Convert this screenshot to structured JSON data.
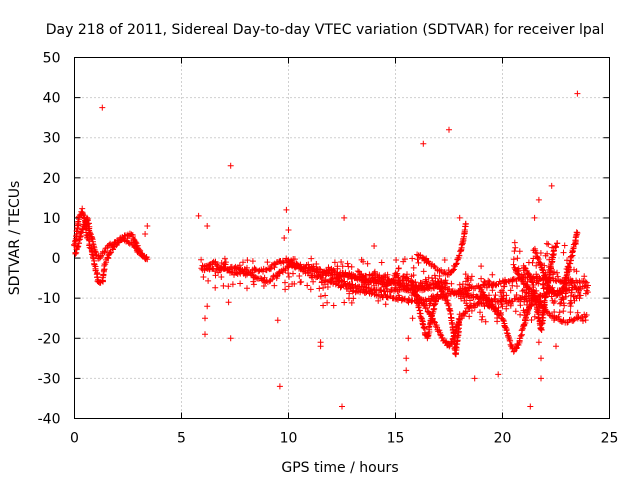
{
  "chart_data": {
    "type": "scatter",
    "title": "Day 218 of 2011, Sidereal Day-to-day VTEC variation (SDTVAR) for receiver lpal",
    "xlabel": "GPS time / hours",
    "ylabel": "SDTVAR / TECUs",
    "xlim": [
      0,
      25
    ],
    "ylim": [
      -40,
      50
    ],
    "xticks": [
      0,
      5,
      10,
      15,
      20,
      25
    ],
    "yticks": [
      -40,
      -30,
      -20,
      -10,
      0,
      10,
      20,
      30,
      40,
      50
    ],
    "grid": true,
    "marker": "+",
    "series_color": "#ff0000",
    "dense_tracks": [
      {
        "name": "arc-0",
        "points": [
          [
            0.0,
            3
          ],
          [
            0.1,
            6
          ],
          [
            0.2,
            10
          ],
          [
            0.35,
            12
          ],
          [
            0.5,
            9
          ],
          [
            0.6,
            5
          ],
          [
            0.8,
            2
          ],
          [
            1.0,
            -3
          ],
          [
            1.1,
            -6
          ],
          [
            1.3,
            -6
          ],
          [
            1.4,
            -2
          ],
          [
            1.6,
            1
          ],
          [
            1.9,
            3
          ],
          [
            2.2,
            5
          ],
          [
            2.5,
            6
          ],
          [
            2.7,
            5.5
          ],
          [
            2.9,
            3
          ],
          [
            3.1,
            1
          ],
          [
            3.3,
            0
          ],
          [
            3.4,
            0
          ]
        ]
      },
      {
        "name": "arc-0b",
        "points": [
          [
            0.05,
            1
          ],
          [
            0.2,
            4
          ],
          [
            0.4,
            8
          ],
          [
            0.6,
            10
          ],
          [
            0.7,
            7
          ],
          [
            0.9,
            3
          ],
          [
            1.1,
            0
          ],
          [
            1.3,
            1
          ],
          [
            1.6,
            3
          ],
          [
            1.9,
            4
          ],
          [
            2.3,
            4.5
          ],
          [
            2.7,
            3.5
          ],
          [
            3.0,
            1.5
          ],
          [
            3.3,
            0.5
          ]
        ]
      },
      {
        "name": "arc-1",
        "points": [
          [
            6.0,
            -2
          ],
          [
            6.5,
            -3
          ],
          [
            7.0,
            -2.5
          ],
          [
            7.5,
            -4
          ],
          [
            8.0,
            -3
          ],
          [
            8.5,
            -5
          ],
          [
            9.0,
            -6
          ],
          [
            9.5,
            -4
          ],
          [
            10.0,
            -2
          ],
          [
            10.5,
            -2
          ],
          [
            11.0,
            -3
          ],
          [
            11.5,
            -3
          ],
          [
            12.0,
            -4
          ],
          [
            12.5,
            -4
          ],
          [
            13.0,
            -5
          ],
          [
            13.5,
            -5
          ],
          [
            14.0,
            -6
          ],
          [
            14.5,
            -6
          ],
          [
            15.0,
            -6
          ],
          [
            15.5,
            -7
          ],
          [
            16.0,
            -7
          ],
          [
            16.5,
            -7
          ],
          [
            17.0,
            -6
          ],
          [
            17.5,
            -6
          ]
        ]
      },
      {
        "name": "arc-2",
        "points": [
          [
            6.0,
            -3
          ],
          [
            6.5,
            -1
          ],
          [
            7.0,
            -3
          ],
          [
            7.5,
            -2
          ],
          [
            8.0,
            -4
          ],
          [
            8.5,
            -3
          ],
          [
            9.0,
            -3
          ],
          [
            9.5,
            -1
          ],
          [
            10.0,
            -1
          ],
          [
            10.5,
            -2
          ],
          [
            11.0,
            -2
          ],
          [
            11.5,
            -4
          ],
          [
            12.0,
            -3
          ],
          [
            12.5,
            -4.5
          ],
          [
            13.0,
            -4
          ],
          [
            13.5,
            -6
          ],
          [
            14.0,
            -5
          ],
          [
            14.5,
            -7
          ],
          [
            15.0,
            -5
          ],
          [
            15.5,
            -6
          ]
        ]
      },
      {
        "name": "arc-3",
        "points": [
          [
            10.0,
            -1
          ],
          [
            11.0,
            -4
          ],
          [
            12.0,
            -6
          ],
          [
            13.0,
            -8
          ],
          [
            14.0,
            -9
          ],
          [
            15.0,
            -10
          ],
          [
            16.0,
            -11
          ],
          [
            17.0,
            -10
          ],
          [
            18.0,
            -8
          ],
          [
            19.0,
            -7
          ],
          [
            20.0,
            -6
          ],
          [
            21.0,
            -5
          ],
          [
            22.0,
            -5
          ],
          [
            23.0,
            -6
          ],
          [
            24.0,
            -6
          ]
        ]
      },
      {
        "name": "arc-4",
        "points": [
          [
            12.0,
            -5
          ],
          [
            13.0,
            -7
          ],
          [
            14.0,
            -8
          ],
          [
            15.0,
            -8
          ],
          [
            16.0,
            -8
          ],
          [
            17.0,
            -7
          ],
          [
            18.0,
            -9
          ],
          [
            19.0,
            -10
          ],
          [
            20.0,
            -11
          ],
          [
            21.0,
            -10
          ],
          [
            22.0,
            -9
          ],
          [
            23.0,
            -8
          ],
          [
            24.0,
            -7
          ]
        ]
      },
      {
        "name": "arc-5",
        "points": [
          [
            14.0,
            -4
          ],
          [
            15.0,
            -6
          ],
          [
            16.0,
            -9
          ],
          [
            16.5,
            -13
          ],
          [
            17.0,
            -18
          ],
          [
            17.3,
            -21
          ],
          [
            17.5,
            -22
          ],
          [
            17.7,
            -20
          ],
          [
            18.0,
            -15
          ],
          [
            18.5,
            -12
          ],
          [
            19.0,
            -11
          ],
          [
            19.5,
            -12
          ],
          [
            20.0,
            -14
          ]
        ]
      },
      {
        "name": "arc-6",
        "points": [
          [
            15.5,
            -5
          ],
          [
            15.8,
            -6
          ],
          [
            16.0,
            -10
          ],
          [
            16.2,
            -15
          ],
          [
            16.4,
            -19
          ],
          [
            16.5,
            -20
          ],
          [
            16.6,
            -17
          ],
          [
            16.8,
            -12
          ],
          [
            17.0,
            -9
          ]
        ]
      },
      {
        "name": "arc-7",
        "points": [
          [
            16.0,
            1
          ],
          [
            16.5,
            -1
          ],
          [
            17.0,
            -3
          ],
          [
            17.5,
            -4
          ],
          [
            17.8,
            -2
          ],
          [
            18.0,
            1
          ],
          [
            18.2,
            5
          ],
          [
            18.3,
            9
          ]
        ]
      },
      {
        "name": "arc-8",
        "points": [
          [
            17.0,
            -6
          ],
          [
            17.5,
            -12
          ],
          [
            17.7,
            -18
          ],
          [
            17.8,
            -24
          ],
          [
            17.9,
            -20
          ],
          [
            18.0,
            -15
          ]
        ]
      },
      {
        "name": "arc-9",
        "points": [
          [
            19.0,
            -8
          ],
          [
            19.5,
            -12
          ],
          [
            20.0,
            -15
          ],
          [
            20.3,
            -20
          ],
          [
            20.5,
            -23
          ],
          [
            20.7,
            -22
          ],
          [
            21.0,
            -17
          ],
          [
            21.2,
            -13
          ],
          [
            21.5,
            -10
          ]
        ]
      },
      {
        "name": "arc-10",
        "points": [
          [
            20.5,
            -2
          ],
          [
            21.0,
            -6
          ],
          [
            21.5,
            -10
          ],
          [
            22.0,
            -13
          ],
          [
            22.5,
            -15
          ],
          [
            23.0,
            -16
          ],
          [
            23.5,
            -15
          ],
          [
            24.0,
            -14
          ]
        ]
      },
      {
        "name": "arc-11",
        "points": [
          [
            21.5,
            2
          ],
          [
            21.8,
            -2
          ],
          [
            22.0,
            -5
          ],
          [
            22.3,
            -8
          ],
          [
            22.5,
            -9
          ],
          [
            22.8,
            -8
          ],
          [
            23.0,
            -4
          ],
          [
            23.2,
            0
          ],
          [
            23.4,
            4
          ],
          [
            23.5,
            7
          ]
        ]
      },
      {
        "name": "arc-12",
        "points": [
          [
            21.0,
            -2
          ],
          [
            21.4,
            -6
          ],
          [
            21.6,
            -12
          ],
          [
            21.8,
            -18
          ],
          [
            22.0,
            -10
          ],
          [
            22.2,
            -4
          ],
          [
            22.4,
            2
          ],
          [
            22.6,
            4
          ]
        ]
      }
    ],
    "outliers": [
      [
        1.3,
        37.5
      ],
      [
        3.4,
        8
      ],
      [
        3.3,
        6
      ],
      [
        5.8,
        10.5
      ],
      [
        6.1,
        -19
      ],
      [
        6.2,
        -12
      ],
      [
        6.1,
        -15
      ],
      [
        6.2,
        8
      ],
      [
        7.3,
        23
      ],
      [
        7.3,
        -20
      ],
      [
        7.2,
        -11
      ],
      [
        9.5,
        -15.5
      ],
      [
        9.6,
        -32
      ],
      [
        9.8,
        5
      ],
      [
        9.9,
        12
      ],
      [
        10.0,
        7
      ],
      [
        11.5,
        -21
      ],
      [
        11.5,
        -22
      ],
      [
        12.5,
        -37
      ],
      [
        12.6,
        10
      ],
      [
        13.1,
        -5
      ],
      [
        14.0,
        3
      ],
      [
        15.5,
        -25
      ],
      [
        15.5,
        -28
      ],
      [
        15.6,
        -20
      ],
      [
        15.8,
        -15
      ],
      [
        16.3,
        28.5
      ],
      [
        17.5,
        32
      ],
      [
        18.0,
        10
      ],
      [
        18.7,
        -30
      ],
      [
        19.8,
        -29
      ],
      [
        20.0,
        -12
      ],
      [
        21.3,
        -37
      ],
      [
        21.5,
        10
      ],
      [
        21.7,
        14.5
      ],
      [
        21.7,
        -21
      ],
      [
        21.8,
        -25
      ],
      [
        21.8,
        -30
      ],
      [
        22.3,
        18
      ],
      [
        22.5,
        -22
      ],
      [
        23.5,
        41
      ],
      [
        23.6,
        -10
      ],
      [
        19.0,
        -2
      ],
      [
        18.0,
        -14
      ]
    ],
    "cluster_boxes": [
      {
        "x": [
          5.8,
          17.5
        ],
        "y": [
          -8,
          0
        ]
      },
      {
        "x": [
          11.5,
          24.0
        ],
        "y": [
          -12,
          -4
        ]
      },
      {
        "x": [
          18.0,
          24.0
        ],
        "y": [
          -16,
          -5
        ]
      },
      {
        "x": [
          20.5,
          23.5
        ],
        "y": [
          -14,
          4
        ]
      }
    ]
  }
}
